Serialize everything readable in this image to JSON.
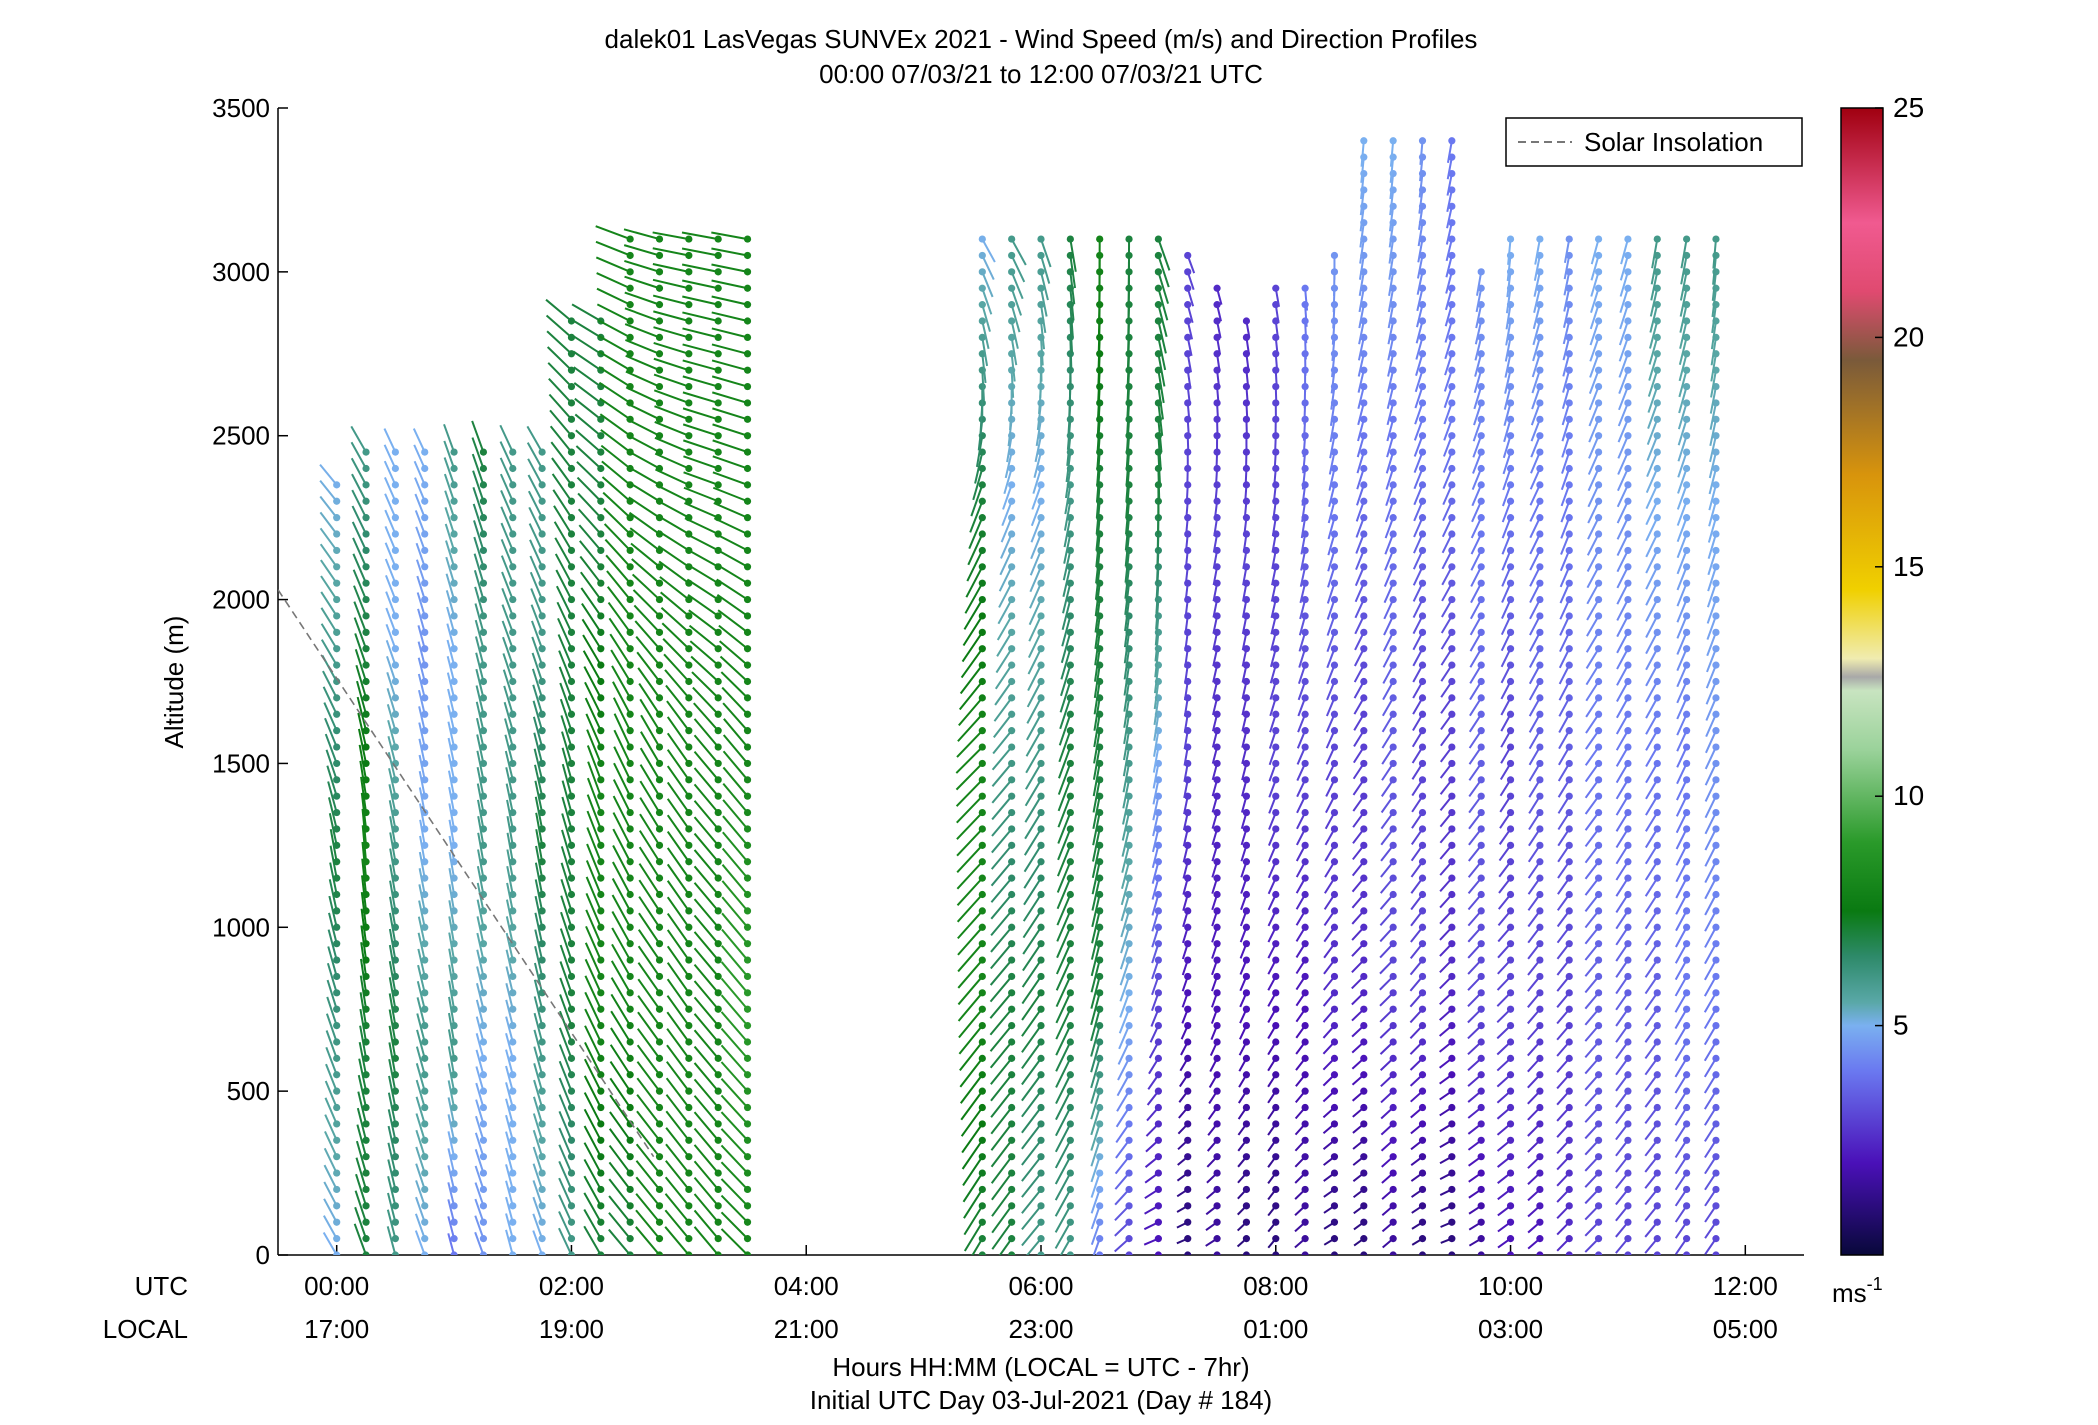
{
  "chart_data": {
    "type": "scatter",
    "title_line1": "dalek01 LasVegas SUNVEx 2021 - Wind Speed (m/s) and Direction Profiles",
    "title_line2": "00:00 07/03/21 to 12:00 07/03/21  UTC",
    "ylabel": "Altitude (m)",
    "ylim": [
      0,
      3500
    ],
    "xlim_hours": [
      -0.5,
      12.5
    ],
    "yticks": [
      "0",
      "500",
      "1000",
      "1500",
      "2000",
      "2500",
      "3000",
      "3500"
    ],
    "xticks_utc": [
      "00:00",
      "02:00",
      "04:00",
      "06:00",
      "08:00",
      "10:00",
      "12:00"
    ],
    "xticks_local": [
      "17:00",
      "19:00",
      "21:00",
      "23:00",
      "01:00",
      "03:00",
      "05:00"
    ],
    "xticks_hours": [
      0,
      2,
      4,
      6,
      8,
      10,
      12
    ],
    "row_label_utc": "UTC",
    "row_label_local": "LOCAL",
    "xlabel_line1": "Hours HH:MM  (LOCAL = UTC - 7hr)",
    "xlabel_line2": "Initial UTC Day 03-Jul-2021 (Day # 184)",
    "legend": {
      "label": "Solar Insolation",
      "style": "dashed gray",
      "placement": "top-right"
    },
    "solar_insolation_line": {
      "x_hours": [
        -0.5,
        2.7
      ],
      "altitude_m": [
        2030,
        300
      ]
    },
    "colorbar": {
      "ticks": [
        "5",
        "10",
        "15",
        "20",
        "25"
      ],
      "tick_values": [
        5,
        10,
        15,
        20,
        25
      ],
      "range": [
        0,
        25
      ],
      "unit": "ms",
      "unit_exp": "-1",
      "stops": [
        {
          "v": 0,
          "c": "#08083a"
        },
        {
          "v": 2,
          "c": "#4a10b8"
        },
        {
          "v": 4,
          "c": "#6a78f0"
        },
        {
          "v": 5,
          "c": "#7ab0f0"
        },
        {
          "v": 5.5,
          "c": "#5aa8a8"
        },
        {
          "v": 6.5,
          "c": "#2e8a6a"
        },
        {
          "v": 7.5,
          "c": "#0a7a12"
        },
        {
          "v": 9,
          "c": "#2a9a2a"
        },
        {
          "v": 11,
          "c": "#9ad29a"
        },
        {
          "v": 12.3,
          "c": "#c8e4c0"
        },
        {
          "v": 12.6,
          "c": "#a8a8a8"
        },
        {
          "v": 13,
          "c": "#f0ecb0"
        },
        {
          "v": 14.5,
          "c": "#f0d000"
        },
        {
          "v": 17,
          "c": "#d8940c"
        },
        {
          "v": 19.5,
          "c": "#7a5a3a"
        },
        {
          "v": 21,
          "c": "#e04a70"
        },
        {
          "v": 22.5,
          "c": "#f05a90"
        },
        {
          "v": 25,
          "c": "#a00010"
        }
      ]
    },
    "profiles": [
      {
        "t": 0.0,
        "top": 2380,
        "spd": [
          5,
          6,
          7,
          6,
          5
        ],
        "dir": [
          330,
          340,
          350,
          330,
          320
        ]
      },
      {
        "t": 0.25,
        "top": 2460,
        "spd": [
          7,
          7,
          8,
          7,
          6
        ],
        "dir": [
          340,
          350,
          355,
          340,
          330
        ]
      },
      {
        "t": 0.5,
        "top": 2460,
        "spd": [
          6,
          7,
          6,
          5,
          5
        ],
        "dir": [
          345,
          350,
          350,
          340,
          335
        ]
      },
      {
        "t": 0.75,
        "top": 2460,
        "spd": [
          5,
          6,
          5,
          4.5,
          5
        ],
        "dir": [
          340,
          345,
          350,
          345,
          335
        ]
      },
      {
        "t": 1.0,
        "top": 2460,
        "spd": [
          4,
          6,
          5,
          5,
          6
        ],
        "dir": [
          345,
          350,
          350,
          345,
          340
        ]
      },
      {
        "t": 1.25,
        "top": 2460,
        "spd": [
          4.5,
          5,
          6,
          6,
          7
        ],
        "dir": [
          340,
          345,
          350,
          345,
          340
        ]
      },
      {
        "t": 1.5,
        "top": 2460,
        "spd": [
          5,
          5,
          6,
          6,
          6
        ],
        "dir": [
          345,
          345,
          350,
          340,
          335
        ]
      },
      {
        "t": 1.75,
        "top": 2460,
        "spd": [
          5,
          6,
          7,
          6,
          6
        ],
        "dir": [
          340,
          345,
          350,
          340,
          330
        ]
      },
      {
        "t": 2.0,
        "top": 2850,
        "spd": [
          6,
          7,
          7,
          7,
          7
        ],
        "dir": [
          335,
          340,
          345,
          330,
          310
        ]
      },
      {
        "t": 2.25,
        "top": 2850,
        "spd": [
          7,
          8,
          8,
          7,
          7
        ],
        "dir": [
          330,
          335,
          340,
          320,
          300
        ]
      },
      {
        "t": 2.5,
        "top": 3120,
        "spd": [
          7,
          8,
          8,
          8,
          8
        ],
        "dir": [
          320,
          330,
          335,
          310,
          290
        ]
      },
      {
        "t": 2.75,
        "top": 3120,
        "spd": [
          8,
          8,
          8,
          8,
          8
        ],
        "dir": [
          320,
          325,
          330,
          300,
          285
        ]
      },
      {
        "t": 3.0,
        "top": 3120,
        "spd": [
          8,
          8,
          8,
          8,
          8
        ],
        "dir": [
          320,
          325,
          325,
          295,
          280
        ]
      },
      {
        "t": 3.25,
        "top": 3120,
        "spd": [
          8,
          8,
          8,
          8,
          8
        ],
        "dir": [
          320,
          320,
          320,
          290,
          280
        ]
      },
      {
        "t": 3.5,
        "top": 3120,
        "spd": [
          8,
          9,
          8,
          8,
          8
        ],
        "dir": [
          315,
          320,
          320,
          290,
          280
        ]
      },
      {
        "t": 5.5,
        "top": 3120,
        "spd": [
          7,
          8,
          8,
          7,
          5
        ],
        "dir": [
          210,
          220,
          225,
          200,
          150
        ]
      },
      {
        "t": 5.75,
        "top": 3120,
        "spd": [
          7,
          7,
          6,
          5,
          6
        ],
        "dir": [
          215,
          220,
          220,
          200,
          150
        ]
      },
      {
        "t": 6.0,
        "top": 3120,
        "spd": [
          6,
          7,
          6,
          5,
          6
        ],
        "dir": [
          220,
          215,
          210,
          200,
          160
        ]
      },
      {
        "t": 6.25,
        "top": 3120,
        "spd": [
          6,
          7,
          7,
          6,
          7
        ],
        "dir": [
          210,
          205,
          200,
          190,
          170
        ]
      },
      {
        "t": 6.5,
        "top": 3120,
        "spd": [
          4,
          7,
          7,
          7,
          8
        ],
        "dir": [
          200,
          195,
          190,
          185,
          180
        ]
      },
      {
        "t": 6.75,
        "top": 3120,
        "spd": [
          3,
          5,
          6,
          7,
          7
        ],
        "dir": [
          230,
          200,
          190,
          185,
          180
        ]
      },
      {
        "t": 7.0,
        "top": 3120,
        "spd": [
          2,
          3,
          5,
          7,
          7
        ],
        "dir": [
          250,
          200,
          190,
          180,
          160
        ]
      },
      {
        "t": 7.25,
        "top": 3050,
        "spd": [
          1,
          2,
          3,
          3,
          3
        ],
        "dir": [
          250,
          200,
          190,
          185,
          160
        ]
      },
      {
        "t": 7.5,
        "top": 2950,
        "spd": [
          1.5,
          2,
          2.5,
          3,
          2.5
        ],
        "dir": [
          240,
          200,
          195,
          190,
          165
        ]
      },
      {
        "t": 7.75,
        "top": 2850,
        "spd": [
          1,
          2,
          2.5,
          3,
          2.5
        ],
        "dir": [
          230,
          205,
          195,
          190,
          170
        ]
      },
      {
        "t": 8.0,
        "top": 2950,
        "spd": [
          1,
          2,
          3,
          3,
          3
        ],
        "dir": [
          220,
          210,
          200,
          190,
          170
        ]
      },
      {
        "t": 8.25,
        "top": 2950,
        "spd": [
          1.5,
          2,
          3,
          3.5,
          4
        ],
        "dir": [
          230,
          215,
          205,
          190,
          175
        ]
      },
      {
        "t": 8.5,
        "top": 3050,
        "spd": [
          1,
          2.5,
          3,
          4,
          4.5
        ],
        "dir": [
          240,
          220,
          205,
          195,
          180
        ]
      },
      {
        "t": 8.75,
        "top": 3400,
        "spd": [
          1,
          2.5,
          3,
          4,
          5
        ],
        "dir": [
          235,
          225,
          210,
          195,
          185
        ]
      },
      {
        "t": 9.0,
        "top": 3400,
        "spd": [
          1.5,
          3,
          3.5,
          4,
          5
        ],
        "dir": [
          230,
          225,
          210,
          195,
          185
        ]
      },
      {
        "t": 9.25,
        "top": 3400,
        "spd": [
          1,
          3,
          3,
          4,
          4.5
        ],
        "dir": [
          240,
          220,
          210,
          200,
          185
        ]
      },
      {
        "t": 9.5,
        "top": 3400,
        "spd": [
          1,
          2.5,
          3,
          4,
          4
        ],
        "dir": [
          250,
          225,
          215,
          200,
          190
        ]
      },
      {
        "t": 9.75,
        "top": 3000,
        "spd": [
          1.5,
          3,
          3.5,
          4,
          4.5
        ],
        "dir": [
          240,
          225,
          215,
          205,
          190
        ]
      },
      {
        "t": 10.0,
        "top": 3120,
        "spd": [
          2,
          3,
          3,
          4,
          5
        ],
        "dir": [
          235,
          225,
          210,
          200,
          185
        ]
      },
      {
        "t": 10.25,
        "top": 3120,
        "spd": [
          2,
          3,
          3.5,
          4,
          5
        ],
        "dir": [
          230,
          220,
          210,
          205,
          190
        ]
      },
      {
        "t": 10.5,
        "top": 3120,
        "spd": [
          2.5,
          3,
          3.5,
          4,
          4.5
        ],
        "dir": [
          225,
          220,
          210,
          200,
          190
        ]
      },
      {
        "t": 10.75,
        "top": 3120,
        "spd": [
          3,
          3.5,
          4,
          4.5,
          5
        ],
        "dir": [
          225,
          220,
          215,
          205,
          195
        ]
      },
      {
        "t": 11.0,
        "top": 3120,
        "spd": [
          3,
          3.5,
          4,
          4.5,
          5
        ],
        "dir": [
          220,
          215,
          210,
          205,
          195
        ]
      },
      {
        "t": 11.25,
        "top": 3100,
        "spd": [
          3,
          3.5,
          4,
          5,
          6
        ],
        "dir": [
          220,
          215,
          210,
          205,
          190
        ]
      },
      {
        "t": 11.5,
        "top": 3100,
        "spd": [
          3,
          4,
          4,
          5,
          6
        ],
        "dir": [
          215,
          210,
          205,
          200,
          190
        ]
      },
      {
        "t": 11.75,
        "top": 3100,
        "spd": [
          3,
          4,
          4.5,
          5,
          6
        ],
        "dir": [
          215,
          210,
          205,
          195,
          185
        ]
      }
    ]
  }
}
